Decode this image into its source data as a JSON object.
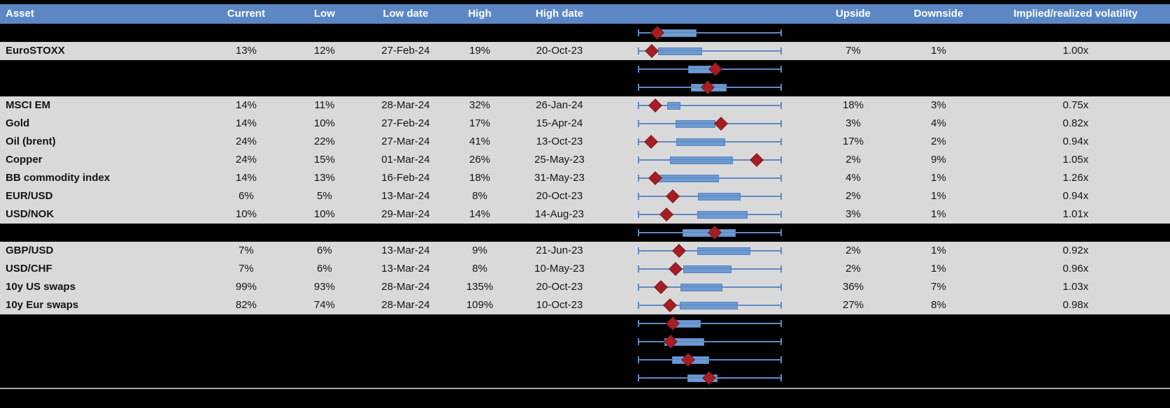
{
  "header": {
    "asset": "Asset",
    "current": "Current",
    "low": "Low",
    "low_date": "Low date",
    "high": "High",
    "high_date": "High date",
    "upside": "Upside",
    "downside": "Downside",
    "ivrv": "Implied/realized volatility"
  },
  "colors": {
    "header_bg": "#5B87C5",
    "row_bg": "#D9D9D9",
    "hidden_row_bg": "#000000",
    "box_fill": "#6E9AD2",
    "whisker": "#6089C7",
    "diamond": "#A51E23",
    "divider": "#A8A8A8"
  },
  "boxplot_note": "plot values are percent positions along the whisker span (left cap = 0, right cap = 100); diamond = current level marker",
  "rows": [
    {
      "type": "hidden",
      "plot": {
        "box_l": 14.6,
        "box_r": 40.8,
        "diamond": 13.6
      }
    },
    {
      "type": "data",
      "asset": "EuroSTOXX",
      "current": "13%",
      "low": "12%",
      "low_date": "27-Feb-24",
      "high": "19%",
      "high_date": "20-Oct-23",
      "upside": "7%",
      "downside": "1%",
      "ivrv": "1.00x",
      "plot": {
        "box_l": 14.1,
        "box_r": 44.7,
        "diamond": 9.7
      }
    },
    {
      "type": "hidden",
      "plot": {
        "box_l": 35.0,
        "box_r": 55.3,
        "diamond": 53.9
      }
    },
    {
      "type": "hidden",
      "plot": {
        "box_l": 36.9,
        "box_r": 61.7,
        "diamond": 48.5
      }
    },
    {
      "type": "data",
      "asset": "MSCI EM",
      "current": "14%",
      "low": "11%",
      "low_date": "28-Mar-24",
      "high": "32%",
      "high_date": "26-Jan-24",
      "upside": "18%",
      "downside": "3%",
      "ivrv": "0.75x",
      "plot": {
        "box_l": 20.4,
        "box_r": 29.6,
        "diamond": 12.1
      }
    },
    {
      "type": "data",
      "asset": "Gold",
      "current": "14%",
      "low": "10%",
      "low_date": "27-Feb-24",
      "high": "17%",
      "high_date": "15-Apr-24",
      "upside": "3%",
      "downside": "4%",
      "ivrv": "0.82x",
      "plot": {
        "box_l": 26.2,
        "box_r": 53.9,
        "diamond": 57.8
      }
    },
    {
      "type": "data",
      "asset": "Oil (brent)",
      "current": "24%",
      "low": "22%",
      "low_date": "27-Mar-24",
      "high": "41%",
      "high_date": "13-Oct-23",
      "upside": "17%",
      "downside": "2%",
      "ivrv": "0.94x",
      "plot": {
        "box_l": 26.7,
        "box_r": 60.7,
        "diamond": 9.2
      }
    },
    {
      "type": "data",
      "asset": "Copper",
      "current": "24%",
      "low": "15%",
      "low_date": "01-Mar-24",
      "high": "26%",
      "high_date": "25-May-23",
      "upside": "2%",
      "downside": "9%",
      "ivrv": "1.05x",
      "plot": {
        "box_l": 22.3,
        "box_r": 66.0,
        "diamond": 82.5
      }
    },
    {
      "type": "data",
      "asset": "BB commodity index",
      "current": "14%",
      "low": "13%",
      "low_date": "16-Feb-24",
      "high": "18%",
      "high_date": "31-May-23",
      "upside": "4%",
      "downside": "1%",
      "ivrv": "1.26x",
      "plot": {
        "box_l": 12.6,
        "box_r": 56.3,
        "diamond": 12.1
      }
    },
    {
      "type": "data",
      "asset": "EUR/USD",
      "current": "6%",
      "low": "5%",
      "low_date": "13-Mar-24",
      "high": "8%",
      "high_date": "20-Oct-23",
      "upside": "2%",
      "downside": "1%",
      "ivrv": "0.94x",
      "plot": {
        "box_l": 41.9,
        "box_r": 71.5,
        "diamond": 24.3
      }
    },
    {
      "type": "data",
      "asset": "USD/NOK",
      "current": "10%",
      "low": "10%",
      "low_date": "29-Mar-24",
      "high": "14%",
      "high_date": "14-Aug-23",
      "upside": "3%",
      "downside": "1%",
      "ivrv": "1.01x",
      "plot": {
        "box_l": 41.4,
        "box_r": 76.1,
        "diamond": 19.7
      }
    },
    {
      "type": "hidden",
      "plot": {
        "box_l": 31.0,
        "box_r": 68.1,
        "diamond": 53.2
      }
    },
    {
      "type": "data",
      "asset": "GBP/USD",
      "current": "7%",
      "low": "6%",
      "low_date": "13-Mar-24",
      "high": "9%",
      "high_date": "21-Jun-23",
      "upside": "2%",
      "downside": "1%",
      "ivrv": "0.92x",
      "plot": {
        "box_l": 41.1,
        "box_r": 78.3,
        "diamond": 28.5
      }
    },
    {
      "type": "data",
      "asset": "USD/CHF",
      "current": "7%",
      "low": "6%",
      "low_date": "13-Mar-24",
      "high": "8%",
      "high_date": "10-May-23",
      "upside": "2%",
      "downside": "1%",
      "ivrv": "0.96x",
      "plot": {
        "box_l": 31.7,
        "box_r": 65.0,
        "diamond": 26.2
      }
    },
    {
      "type": "data",
      "asset": "10y US swaps",
      "current": "99%",
      "low": "93%",
      "low_date": "28-Mar-24",
      "high": "135%",
      "high_date": "20-Oct-23",
      "upside": "36%",
      "downside": "7%",
      "ivrv": "1.03x",
      "plot": {
        "box_l": 29.5,
        "box_r": 58.6,
        "diamond": 16.0
      }
    },
    {
      "type": "data",
      "asset": "10y Eur swaps",
      "current": "82%",
      "low": "74%",
      "low_date": "28-Mar-24",
      "high": "109%",
      "high_date": "10-Oct-23",
      "upside": "27%",
      "downside": "8%",
      "ivrv": "0.98x",
      "plot": {
        "box_l": 29.0,
        "box_r": 69.4,
        "diamond": 22.3
      }
    },
    {
      "type": "hidden",
      "plot": {
        "box_l": 21.7,
        "box_r": 43.5,
        "diamond": 24.1
      }
    },
    {
      "type": "hidden",
      "plot": {
        "box_l": 18.4,
        "box_r": 46.3,
        "diamond": 22.8
      }
    },
    {
      "type": "hidden",
      "plot": {
        "box_l": 23.6,
        "box_r": 49.7,
        "diamond": 34.8
      }
    },
    {
      "type": "hidden",
      "plot": {
        "box_l": 34.6,
        "box_r": 55.3,
        "diamond": 49.4
      }
    }
  ]
}
